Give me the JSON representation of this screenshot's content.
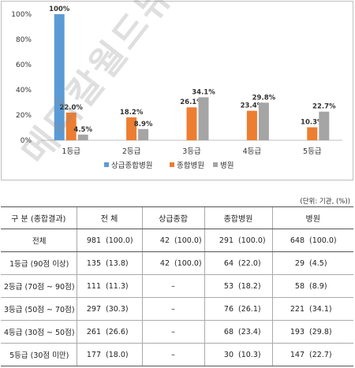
{
  "chart_data": {
    "type": "bar",
    "categories": [
      "1등급",
      "2등급",
      "3등급",
      "4등급",
      "5등급"
    ],
    "series": [
      {
        "name": "상급종합병원",
        "color": "#5b9bd5",
        "values": [
          100,
          null,
          null,
          null,
          null
        ],
        "labels": [
          "100%",
          "",
          "",
          "",
          ""
        ]
      },
      {
        "name": "종합병원",
        "color": "#ed7d31",
        "values": [
          22.0,
          18.2,
          26.1,
          23.4,
          10.3
        ],
        "labels": [
          "22.0%",
          "18.2%",
          "26.1%",
          "23.4%",
          "10.3%"
        ]
      },
      {
        "name": "병원",
        "color": "#a5a5a5",
        "values": [
          4.5,
          8.9,
          34.1,
          29.8,
          22.7
        ],
        "labels": [
          "4.5%",
          "8.9%",
          "34.1%",
          "29.8%",
          "22.7%"
        ]
      }
    ],
    "yticks": [
      "0%",
      "20%",
      "40%",
      "60%",
      "80%",
      "100%"
    ],
    "ylim": [
      0,
      100
    ],
    "legend_position": "bottom",
    "grid": false
  },
  "unit_note": "(단위: 기관, (%))",
  "table": {
    "headers": [
      "구  분 (종합결과)",
      "전  체",
      "상급종합",
      "종합병원",
      "병원"
    ],
    "rows": [
      {
        "label": "전체",
        "cells": [
          [
            "981",
            "(100.0)"
          ],
          [
            "42",
            "(100.0)"
          ],
          [
            "291",
            "(100.0)"
          ],
          [
            "648",
            "(100.0)"
          ]
        ]
      },
      {
        "label": "1등급 (90점 이상)",
        "cells": [
          [
            "135",
            "(13.8)"
          ],
          [
            "42",
            "(100.0)"
          ],
          [
            "64",
            "(22.0)"
          ],
          [
            "29",
            "(4.5)"
          ]
        ]
      },
      {
        "label": "2등급 (70점 ~ 90점)",
        "cells": [
          [
            "111",
            "(11.3)"
          ],
          [
            "–",
            ""
          ],
          [
            "53",
            "(18.2)"
          ],
          [
            "58",
            "(8.9)"
          ]
        ]
      },
      {
        "label": "3등급 (50점 ~ 70점)",
        "cells": [
          [
            "297",
            "(30.3)"
          ],
          [
            "–",
            ""
          ],
          [
            "76",
            "(26.1)"
          ],
          [
            "221",
            "(34.1)"
          ]
        ]
      },
      {
        "label": "4등급 (30점 ~ 50점)",
        "cells": [
          [
            "261",
            "(26.6)"
          ],
          [
            "–",
            ""
          ],
          [
            "68",
            "(23.4)"
          ],
          [
            "193",
            "(29.8)"
          ]
        ]
      },
      {
        "label": "5등급 (30점 미만)",
        "cells": [
          [
            "177",
            "(18.0)"
          ],
          [
            "–",
            ""
          ],
          [
            "30",
            "(10.3)"
          ],
          [
            "147",
            "(22.7)"
          ]
        ]
      }
    ]
  },
  "watermark": "메디칼월드뉴스"
}
